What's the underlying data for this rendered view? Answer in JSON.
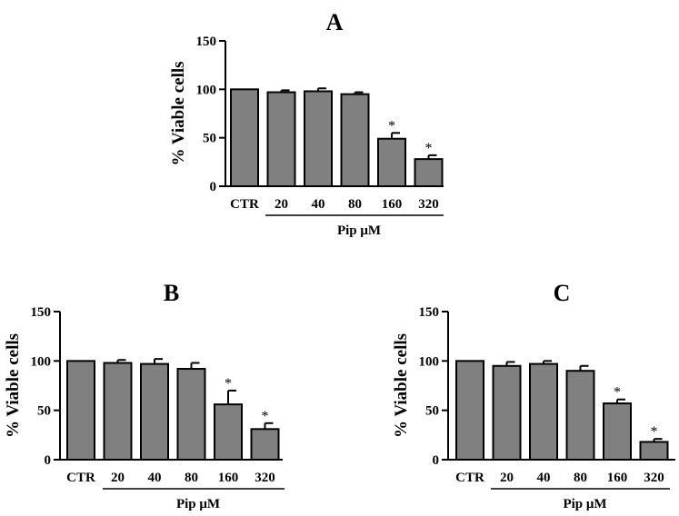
{
  "style": {
    "bar_color": "#808080",
    "axis_color": "#000000"
  },
  "chart_data": [
    {
      "type": "bar",
      "title": "A",
      "categories": [
        "CTR",
        "20",
        "40",
        "80",
        "160",
        "320"
      ],
      "values": [
        100,
        97,
        98,
        95,
        49,
        28
      ],
      "errors": [
        0,
        2,
        3,
        2,
        6,
        4
      ],
      "significant": [
        "",
        "",
        "",
        "",
        "*",
        "*"
      ],
      "xlabel": "Pip μM",
      "ylabel": "% Viable cells",
      "ylim": [
        0,
        150
      ],
      "yticks": [
        0,
        50,
        100,
        150
      ],
      "grid": false
    },
    {
      "type": "bar",
      "title": "B",
      "categories": [
        "CTR",
        "20",
        "40",
        "80",
        "160",
        "320"
      ],
      "values": [
        100,
        98,
        97,
        92,
        56,
        31
      ],
      "errors": [
        0,
        3,
        5,
        6,
        14,
        6
      ],
      "significant": [
        "",
        "",
        "",
        "",
        "*",
        "*"
      ],
      "xlabel": "Pip μM",
      "ylabel": "% Viable cells",
      "ylim": [
        0,
        150
      ],
      "yticks": [
        0,
        50,
        100,
        150
      ],
      "grid": false
    },
    {
      "type": "bar",
      "title": "C",
      "categories": [
        "CTR",
        "20",
        "40",
        "80",
        "160",
        "320"
      ],
      "values": [
        100,
        95,
        97,
        90,
        57,
        18
      ],
      "errors": [
        0,
        4,
        3,
        5,
        4,
        3
      ],
      "significant": [
        "",
        "",
        "",
        "",
        "*",
        "*"
      ],
      "xlabel": "Pip μM",
      "ylabel": "% Viable cells",
      "ylim": [
        0,
        150
      ],
      "yticks": [
        0,
        50,
        100,
        150
      ],
      "grid": false
    }
  ]
}
